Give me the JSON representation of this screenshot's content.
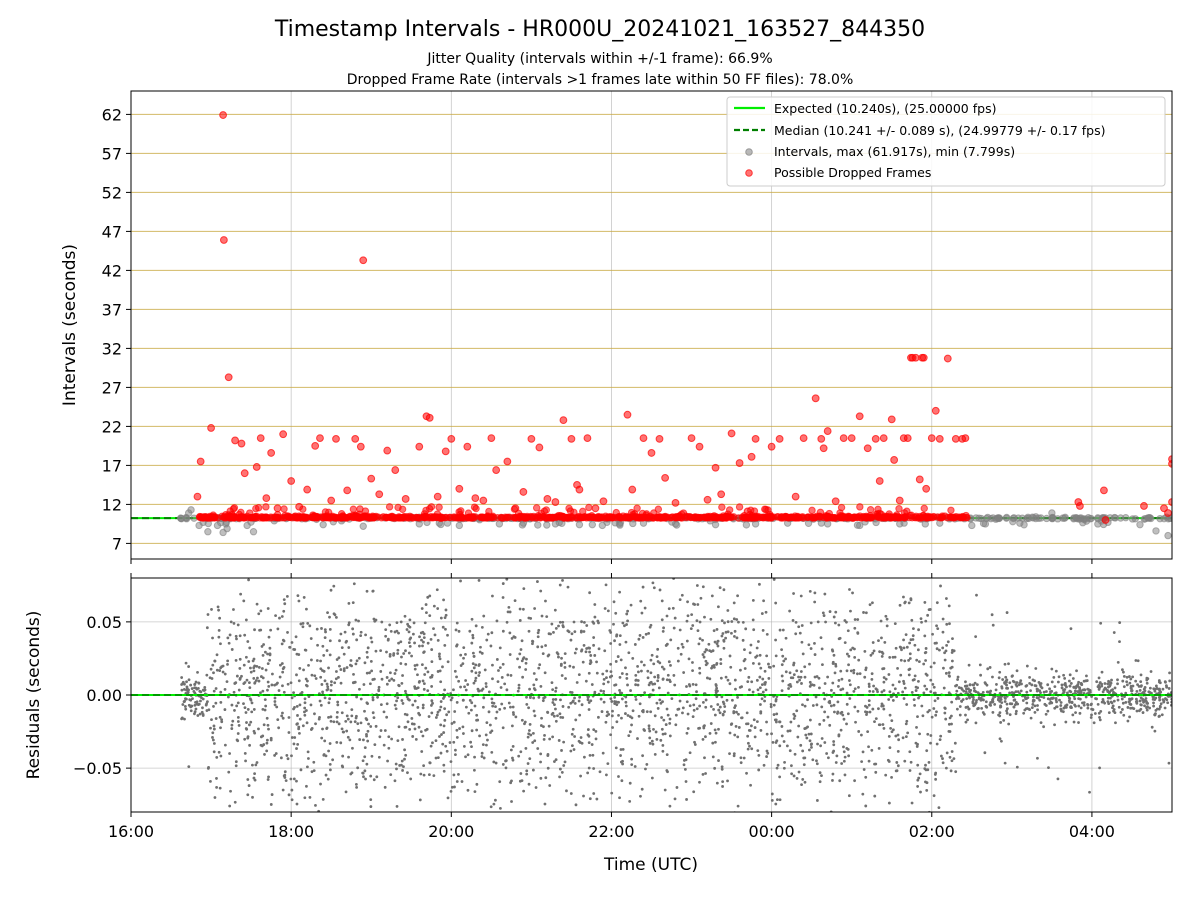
{
  "chart_data": [
    {
      "type": "scatter",
      "title": "Timestamp Intervals - HR000U_20241021_163527_844350",
      "subtitle_lines": [
        "Jitter Quality (intervals within +/-1 frame): 66.9%",
        "Dropped Frame Rate (intervals >1 frames late within 50 FF files): 78.0%"
      ],
      "ylabel": "Intervals (seconds)",
      "xlabel": "",
      "xlim_hours": [
        16.0,
        29.0
      ],
      "ylim": [
        5.0,
        65.0
      ],
      "yticks": [
        7,
        12,
        17,
        22,
        27,
        32,
        37,
        42,
        47,
        52,
        57,
        62
      ],
      "ytick_labels": [
        "7",
        "12",
        "17",
        "22",
        "27",
        "32",
        "37",
        "42",
        "47",
        "52",
        "57",
        "62"
      ],
      "xticks_hours": [
        16,
        18,
        20,
        22,
        24,
        26,
        28
      ],
      "grid": true,
      "legend_position": "top-right",
      "legend": [
        {
          "label": "Expected (10.240s), (25.00000 fps)",
          "style": "solid-line",
          "color": "#00ee00"
        },
        {
          "label": "Median (10.241 +/- 0.089 s), (24.99779 +/- 0.17 fps)",
          "style": "dashed-line",
          "color": "#007f00"
        },
        {
          "label": "Intervals, max (61.917s), min (7.799s)",
          "style": "marker",
          "color": "#808080"
        },
        {
          "label": "Possible Dropped Frames",
          "style": "marker",
          "color": "#ff0000"
        }
      ],
      "expected_interval": 10.24,
      "median_interval": 10.241,
      "interval_range": [
        16.6,
        29.0
      ],
      "dense_dropped_band": {
        "x_range": [
          16.85,
          26.45
        ],
        "y": 10.25
      },
      "series": [
        {
          "name": "Possible Dropped Frames",
          "color": "#ff0000",
          "x": [
            17.15,
            17.16,
            17.22,
            17.0,
            16.87,
            16.83,
            17.3,
            17.38,
            17.42,
            17.57,
            17.62,
            17.69,
            17.75,
            17.83,
            17.9,
            18.0,
            18.1,
            18.2,
            18.3,
            18.36,
            18.5,
            18.56,
            18.7,
            18.8,
            18.87,
            18.9,
            19.0,
            19.1,
            19.2,
            19.3,
            19.43,
            19.6,
            19.69,
            19.73,
            19.83,
            19.93,
            20.0,
            20.1,
            20.2,
            20.3,
            20.4,
            20.5,
            20.56,
            20.7,
            20.8,
            20.9,
            21.0,
            21.1,
            21.2,
            21.3,
            21.4,
            21.5,
            21.57,
            21.6,
            21.7,
            21.8,
            21.9,
            22.2,
            22.26,
            22.4,
            22.5,
            22.6,
            22.67,
            22.8,
            23.0,
            23.1,
            23.2,
            23.3,
            23.37,
            23.5,
            23.6,
            23.7,
            23.75,
            23.8,
            24.0,
            24.1,
            24.3,
            24.4,
            24.55,
            24.62,
            24.65,
            24.7,
            24.8,
            24.9,
            25.0,
            25.1,
            25.2,
            25.3,
            25.35,
            25.4,
            25.5,
            25.53,
            25.6,
            25.65,
            25.7,
            25.74,
            25.76,
            25.8,
            25.85,
            25.88,
            25.9,
            25.93,
            26.0,
            26.05,
            26.1,
            26.2,
            26.3,
            26.38,
            26.42,
            28.9,
            28.95,
            29.0,
            28.65,
            29.0,
            29.0,
            27.83,
            27.85,
            28.15,
            28.17
          ],
          "y": [
            61.917,
            45.9,
            28.3,
            21.8,
            17.5,
            13.0,
            20.2,
            19.8,
            16.0,
            16.8,
            20.5,
            12.8,
            18.6,
            11.5,
            21.0,
            15.0,
            11.7,
            13.9,
            19.5,
            20.5,
            12.5,
            20.4,
            13.8,
            20.4,
            19.4,
            43.3,
            15.3,
            13.3,
            18.9,
            16.4,
            12.7,
            19.4,
            23.3,
            23.1,
            13.0,
            18.8,
            20.4,
            14.0,
            19.4,
            12.8,
            12.5,
            20.5,
            16.4,
            17.5,
            11.5,
            13.6,
            20.4,
            19.3,
            12.7,
            12.3,
            22.8,
            20.4,
            14.5,
            13.9,
            20.5,
            11.5,
            12.4,
            23.5,
            13.9,
            20.5,
            18.6,
            20.4,
            15.4,
            12.2,
            20.5,
            19.4,
            12.6,
            16.7,
            13.3,
            21.1,
            17.3,
            11.1,
            18.1,
            20.4,
            19.4,
            20.4,
            13.0,
            20.5,
            25.6,
            20.4,
            19.2,
            21.4,
            12.4,
            20.5,
            20.5,
            23.3,
            19.2,
            20.4,
            15.0,
            20.5,
            22.9,
            17.7,
            12.5,
            20.5,
            20.5,
            30.8,
            30.8,
            30.8,
            15.2,
            30.8,
            30.8,
            14.0,
            20.5,
            24.0,
            20.4,
            30.7,
            20.4,
            20.4,
            20.5,
            11.5,
            10.9,
            12.3,
            11.8,
            17.8,
            17.2,
            12.3,
            11.8,
            13.8,
            10.0
          ]
        },
        {
          "name": "Intervals",
          "color": "#808080",
          "x": [
            16.62,
            16.72,
            16.75,
            16.85,
            16.9,
            16.96,
            17.08,
            17.15,
            17.2,
            17.45,
            17.53,
            18.4,
            18.9,
            19.6,
            19.85,
            20.1,
            20.6,
            20.9,
            21.3,
            21.6,
            22.1,
            22.4,
            22.8,
            23.3,
            23.8,
            24.2,
            24.7,
            25.1,
            25.6,
            26.1,
            26.5,
            26.8,
            27.1,
            27.3,
            27.5,
            27.9,
            28.2,
            28.6,
            28.8,
            28.95
          ],
          "y": [
            10.24,
            10.9,
            11.3,
            9.3,
            9.7,
            8.5,
            9.3,
            8.4,
            8.9,
            9.3,
            8.5,
            9.4,
            9.2,
            9.5,
            9.6,
            9.3,
            9.5,
            9.6,
            9.5,
            9.4,
            9.5,
            9.6,
            9.5,
            9.4,
            9.5,
            9.6,
            9.5,
            9.3,
            9.5,
            9.6,
            9.3,
            10.1,
            9.6,
            10.4,
            10.9,
            10.1,
            9.7,
            9.4,
            8.6,
            8.0
          ]
        }
      ]
    },
    {
      "type": "scatter",
      "title": "",
      "ylabel": "Residuals (seconds)",
      "xlabel": "Time (UTC)",
      "xlim_hours": [
        16.0,
        29.0
      ],
      "ylim": [
        -0.08,
        0.08
      ],
      "yticks": [
        -0.05,
        0.0,
        0.05
      ],
      "ytick_labels": [
        "−0.05",
        "0.00",
        "0.05"
      ],
      "xticks_hours": [
        16,
        18,
        20,
        22,
        24,
        26,
        28
      ],
      "xtick_labels": [
        "16:00",
        "18:00",
        "20:00",
        "22:00",
        "00:00",
        "02:00",
        "04:00"
      ],
      "grid": true,
      "residual_line": 0.0,
      "series": [
        {
          "name": "Residuals",
          "color": "#808080",
          "x_range": [
            16.62,
            29.0
          ],
          "noisy_window_hours": [
            16.95,
            26.3
          ],
          "y_spread_inside_window": 0.06,
          "y_spread_outside_window": 0.008
        }
      ]
    }
  ]
}
